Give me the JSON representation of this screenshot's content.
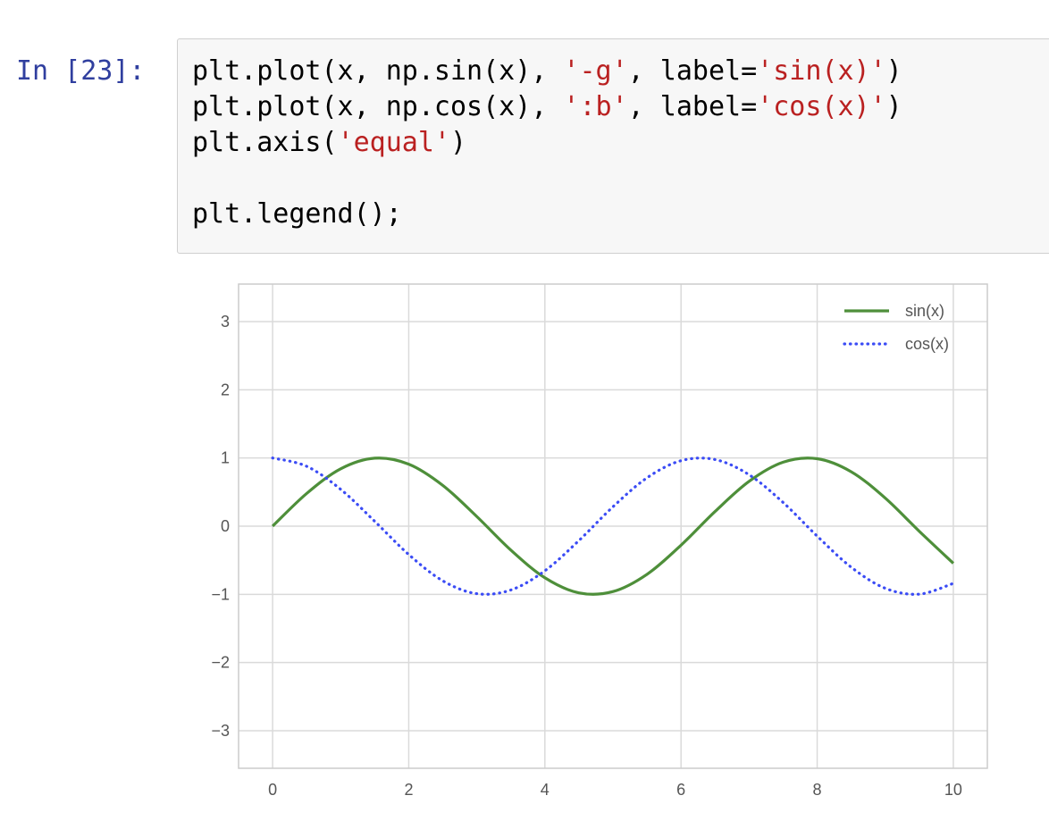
{
  "prompt": "In [23]:",
  "code_lines": [
    [
      {
        "t": "plt.plot(x, np.sin(x), ",
        "s": false
      },
      {
        "t": "'-g'",
        "s": true
      },
      {
        "t": ", label=",
        "s": false
      },
      {
        "t": "'sin(x)'",
        "s": true
      },
      {
        "t": ")",
        "s": false
      }
    ],
    [
      {
        "t": "plt.plot(x, np.cos(x), ",
        "s": false
      },
      {
        "t": "':b'",
        "s": true
      },
      {
        "t": ", label=",
        "s": false
      },
      {
        "t": "'cos(x)'",
        "s": true
      },
      {
        "t": ")",
        "s": false
      }
    ],
    [
      {
        "t": "plt.axis(",
        "s": false
      },
      {
        "t": "'equal'",
        "s": true
      },
      {
        "t": ")",
        "s": false
      }
    ],
    [],
    [
      {
        "t": "plt.legend();",
        "s": false
      }
    ]
  ],
  "chart_data": {
    "type": "line",
    "title": "",
    "xlabel": "",
    "ylabel": "",
    "xlim": [
      -0.5,
      10.5
    ],
    "ylim": [
      -3.55,
      3.55
    ],
    "x_ticks": [
      0,
      2,
      4,
      6,
      8,
      10
    ],
    "y_ticks": [
      3,
      2,
      1,
      0,
      -1,
      -2,
      -3
    ],
    "x_tick_labels": [
      "0",
      "2",
      "4",
      "6",
      "8",
      "10"
    ],
    "y_tick_labels": [
      "3",
      "2",
      "1",
      "0",
      "−1",
      "−2",
      "−3"
    ],
    "grid": true,
    "legend": "top-right",
    "x": [
      0,
      0.5,
      1,
      1.5,
      2,
      2.5,
      3,
      3.5,
      4,
      4.5,
      5,
      5.5,
      6,
      6.5,
      7,
      7.5,
      8,
      8.5,
      9,
      9.5,
      10
    ],
    "series": [
      {
        "name": "sin(x)",
        "style": "solid",
        "color": "#4e8f3a",
        "values": [
          0.0,
          0.479,
          0.841,
          0.997,
          0.909,
          0.598,
          0.141,
          -0.351,
          -0.757,
          -0.978,
          -0.959,
          -0.706,
          -0.279,
          0.215,
          0.657,
          0.938,
          0.989,
          0.798,
          0.412,
          -0.075,
          -0.544
        ]
      },
      {
        "name": "cos(x)",
        "style": "dotted",
        "color": "#3b4cf5",
        "values": [
          1.0,
          0.878,
          0.54,
          0.071,
          -0.416,
          -0.801,
          -0.99,
          -0.936,
          -0.654,
          -0.211,
          0.284,
          0.709,
          0.96,
          0.977,
          0.754,
          0.347,
          -0.146,
          -0.602,
          -0.911,
          -0.997,
          -0.839
        ]
      }
    ]
  }
}
